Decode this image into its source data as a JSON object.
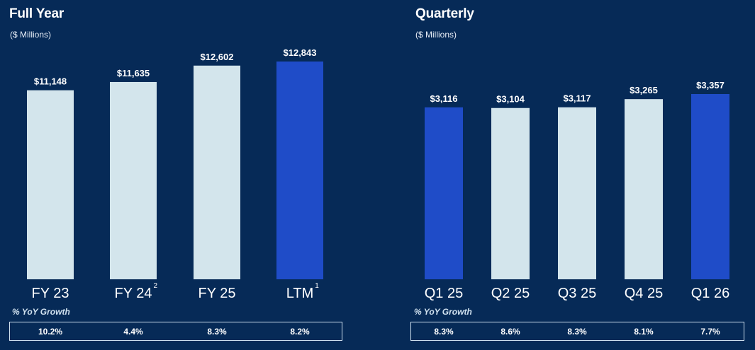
{
  "full_year": {
    "title": "Full Year",
    "subtitle": "($ Millions)",
    "growth_label": "% YoY Growth"
  },
  "quarterly": {
    "title": "Quarterly",
    "subtitle": "($ Millions)",
    "growth_label": "% YoY Growth"
  },
  "colors": {
    "background": "#062a57",
    "bar_light": "#d3e5ec",
    "bar_highlight": "#1f4cc8",
    "text": "#ffffff"
  },
  "chart_data": [
    {
      "type": "bar",
      "title": "Full Year",
      "subtitle": "($ Millions)",
      "categories": [
        "FY 23",
        "FY 24",
        "FY 25",
        "LTM"
      ],
      "category_superscripts": [
        "",
        "2",
        "",
        "1"
      ],
      "values": [
        11148,
        11635,
        12602,
        12843
      ],
      "value_labels": [
        "$11,148",
        "$11,635",
        "$12,602",
        "$12,843"
      ],
      "highlight": [
        false,
        false,
        false,
        true
      ],
      "yoy_growth": [
        "10.2%",
        "4.4%",
        "8.3%",
        "8.2%"
      ],
      "ylim": [
        0,
        12843
      ],
      "grid": false,
      "legend": "none"
    },
    {
      "type": "bar",
      "title": "Quarterly",
      "subtitle": "($ Millions)",
      "categories": [
        "Q1 25",
        "Q2 25",
        "Q3 25",
        "Q4 25",
        "Q1 26"
      ],
      "category_superscripts": [
        "",
        "",
        "",
        "",
        ""
      ],
      "values": [
        3116,
        3104,
        3117,
        3265,
        3357
      ],
      "value_labels": [
        "$3,116",
        "$3,104",
        "$3,117",
        "$3,265",
        "$3,357"
      ],
      "highlight": [
        true,
        false,
        false,
        false,
        true
      ],
      "yoy_growth": [
        "8.3%",
        "8.6%",
        "8.3%",
        "8.1%",
        "7.7%"
      ],
      "ylim": [
        0,
        3357
      ],
      "grid": false,
      "legend": "none"
    }
  ]
}
